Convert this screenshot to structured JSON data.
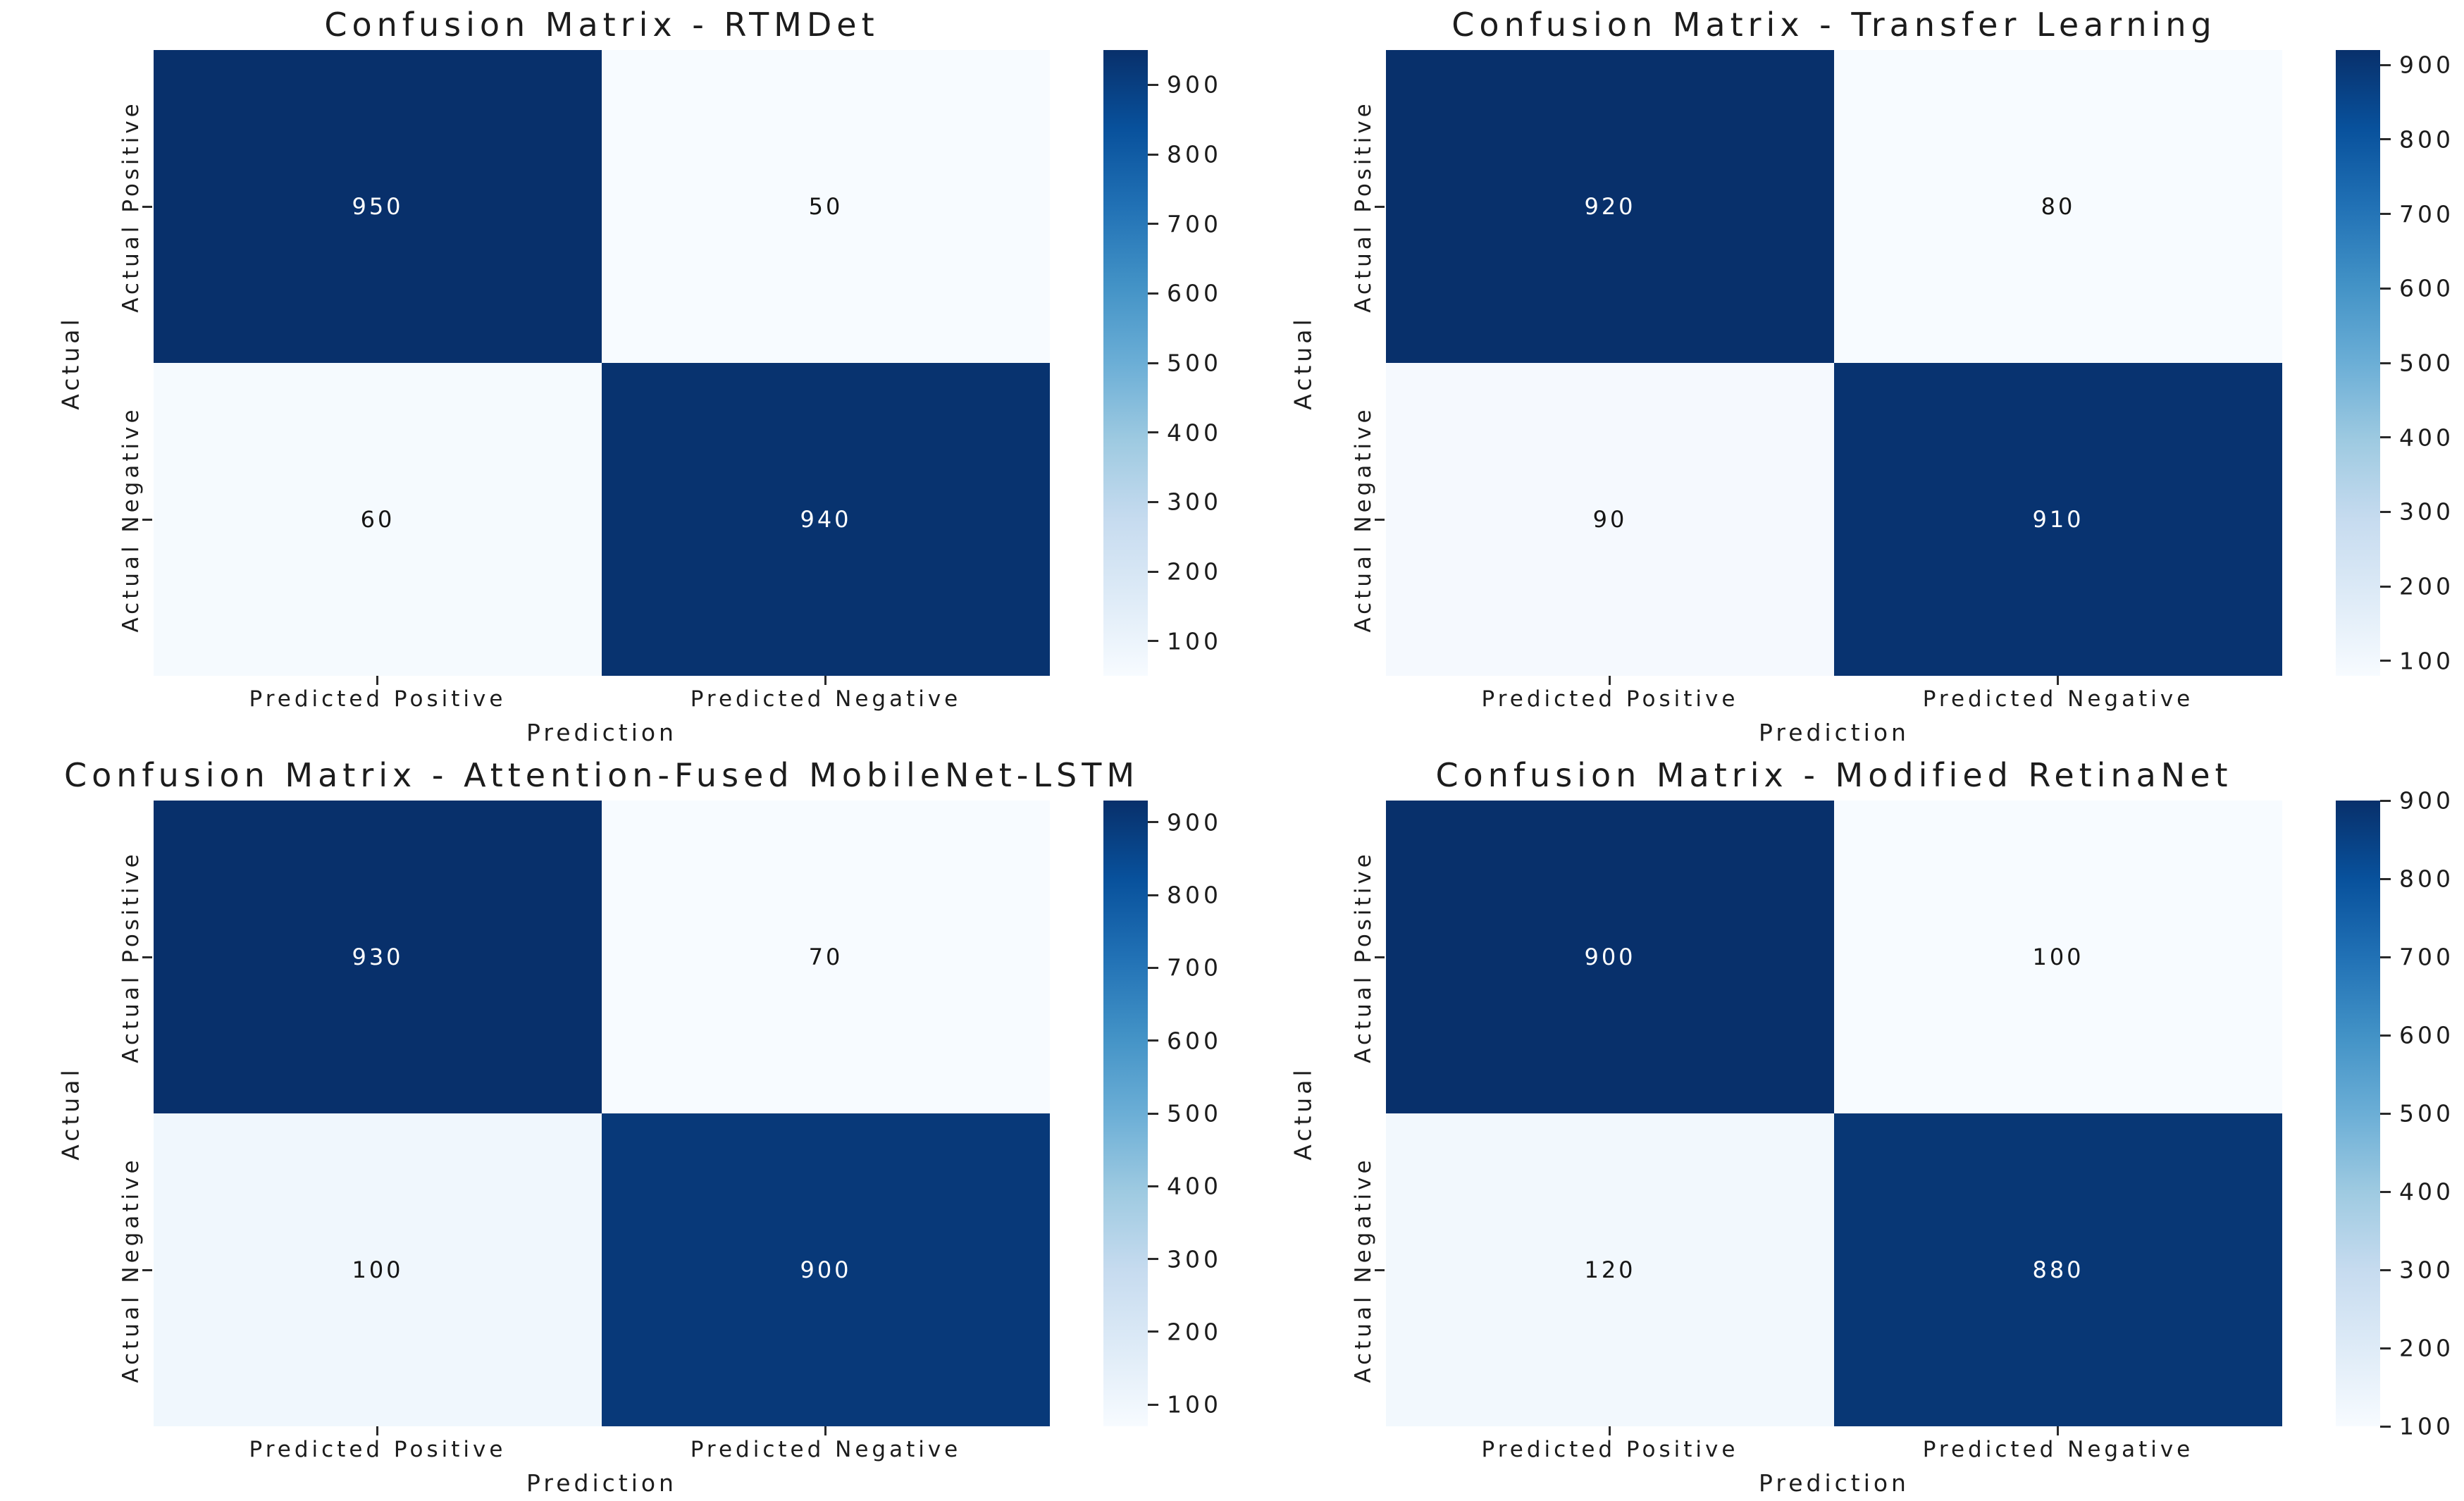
{
  "figure": {
    "background_color": "#ffffff",
    "text_color": "#1c1c1c",
    "colormap": {
      "name": "Blues",
      "stops": [
        "#f7fbff",
        "#deebf7",
        "#c6dbef",
        "#9ecae1",
        "#6baed6",
        "#4292c6",
        "#2171b5",
        "#08519c",
        "#08306b"
      ]
    },
    "cell_text_on_dark": "#ffffff",
    "cell_text_on_light": "#151515",
    "colorbar": {
      "tick_values": [
        100,
        200,
        300,
        400,
        500,
        600,
        700,
        800,
        900
      ]
    }
  },
  "chart_data": [
    {
      "type": "heatmap",
      "title": "Confusion Matrix - RTMDet",
      "xlabel": "Prediction",
      "ylabel": "Actual",
      "x_categories": [
        "Predicted Positive",
        "Predicted Negative"
      ],
      "y_categories": [
        "Actual Positive",
        "Actual Negative"
      ],
      "matrix": [
        [
          950,
          50
        ],
        [
          60,
          940
        ]
      ],
      "colormap": "Blues",
      "colorbar_ticks": [
        100,
        200,
        300,
        400,
        500,
        600,
        700,
        800,
        900
      ]
    },
    {
      "type": "heatmap",
      "title": "Confusion Matrix - Transfer Learning",
      "xlabel": "Prediction",
      "ylabel": "Actual",
      "x_categories": [
        "Predicted Positive",
        "Predicted Negative"
      ],
      "y_categories": [
        "Actual Positive",
        "Actual Negative"
      ],
      "matrix": [
        [
          920,
          80
        ],
        [
          90,
          910
        ]
      ],
      "colormap": "Blues",
      "colorbar_ticks": [
        100,
        200,
        300,
        400,
        500,
        600,
        700,
        800,
        900
      ]
    },
    {
      "type": "heatmap",
      "title": "Confusion Matrix - Attention-Fused MobileNet-LSTM",
      "xlabel": "Prediction",
      "ylabel": "Actual",
      "x_categories": [
        "Predicted Positive",
        "Predicted Negative"
      ],
      "y_categories": [
        "Actual Positive",
        "Actual Negative"
      ],
      "matrix": [
        [
          930,
          70
        ],
        [
          100,
          900
        ]
      ],
      "colormap": "Blues",
      "colorbar_ticks": [
        100,
        200,
        300,
        400,
        500,
        600,
        700,
        800,
        900
      ]
    },
    {
      "type": "heatmap",
      "title": "Confusion Matrix - Modified RetinaNet",
      "xlabel": "Prediction",
      "ylabel": "Actual",
      "x_categories": [
        "Predicted Positive",
        "Predicted Negative"
      ],
      "y_categories": [
        "Actual Positive",
        "Actual Negative"
      ],
      "matrix": [
        [
          900,
          100
        ],
        [
          120,
          880
        ]
      ],
      "colormap": "Blues",
      "colorbar_ticks": [
        100,
        200,
        300,
        400,
        500,
        600,
        700,
        800,
        900
      ]
    }
  ]
}
